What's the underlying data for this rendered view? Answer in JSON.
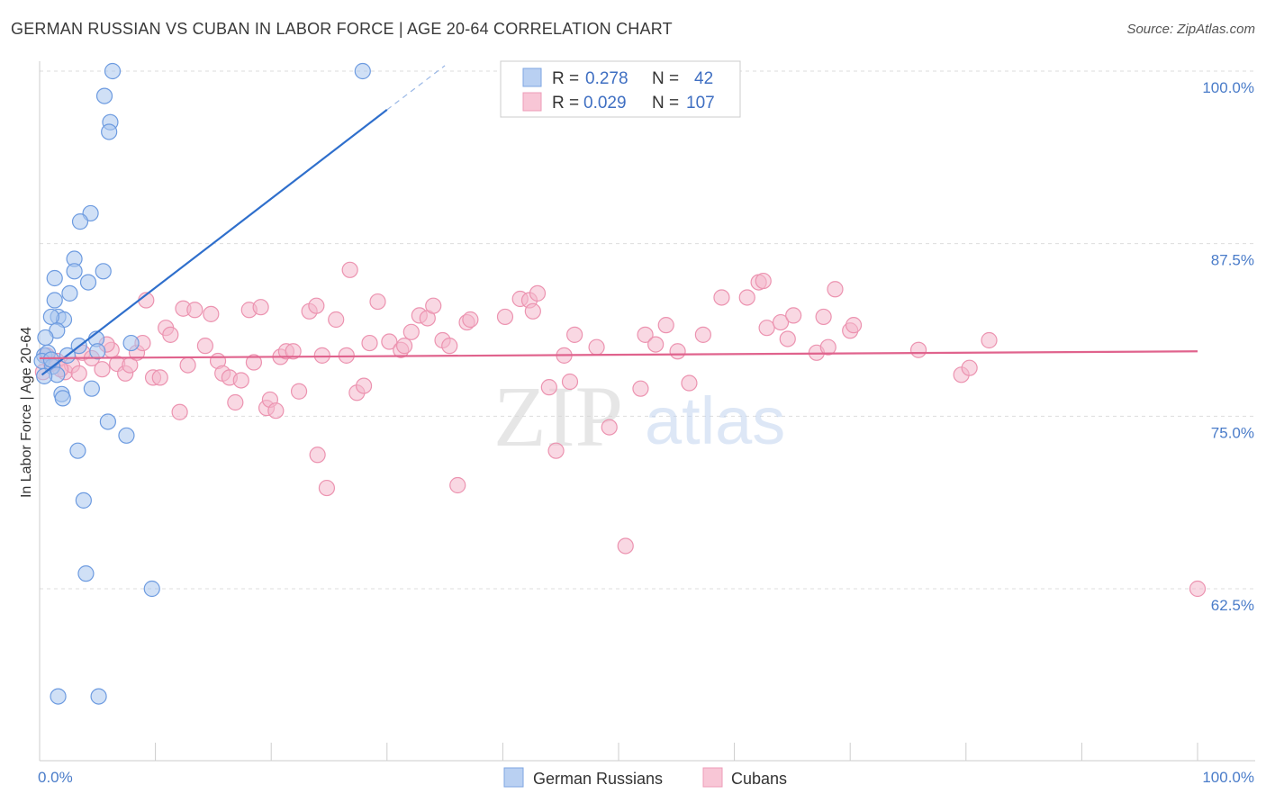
{
  "header": {
    "title": "GERMAN RUSSIAN VS CUBAN IN LABOR FORCE | AGE 20-64 CORRELATION CHART",
    "source": "Source: ZipAtlas.com"
  },
  "watermark": {
    "zip": "ZIP",
    "atlas": "atlas"
  },
  "legend": {
    "r_label": "R =",
    "n_label": "N =",
    "series": [
      {
        "r": "0.278",
        "n": "42"
      },
      {
        "r": "0.029",
        "n": "107"
      }
    ]
  },
  "colors": {
    "blue_fill": "#a9c6ef",
    "blue_stroke": "#6d9be0",
    "blue_line": "#2f6fcc",
    "pink_fill": "#f4b8cc",
    "pink_stroke": "#ec93b0",
    "pink_line": "#e0638d",
    "tick_text": "#4a7cc9"
  },
  "chart_data": {
    "type": "scatter",
    "title": "GERMAN RUSSIAN VS CUBAN IN LABOR FORCE | AGE 20-64 CORRELATION CHART",
    "xlabel": "",
    "ylabel": "In Labor Force | Age 20-64",
    "xlim": [
      0,
      100
    ],
    "ylim": [
      52,
      102
    ],
    "x_tick_labels": [
      "0.0%",
      "100.0%"
    ],
    "y_ticks": [
      62.5,
      75.0,
      87.5,
      100.0
    ],
    "y_tick_labels": [
      "62.5%",
      "75.0%",
      "87.5%",
      "100.0%"
    ],
    "legend_position": "top-center",
    "series": [
      {
        "name": "German Russians",
        "r": 0.278,
        "n": 42,
        "trend": {
          "x0": 0.2,
          "y0": 78.0,
          "x1": 30,
          "y1": 97.2,
          "dash_x1": 35,
          "dash_y1": 100.4
        },
        "points": [
          [
            6.3,
            100.0
          ],
          [
            27.9,
            100.0
          ],
          [
            5.6,
            98.2
          ],
          [
            6.1,
            96.3
          ],
          [
            6.0,
            95.6
          ],
          [
            4.4,
            89.7
          ],
          [
            3.5,
            89.1
          ],
          [
            3.0,
            86.4
          ],
          [
            5.5,
            85.5
          ],
          [
            1.3,
            85.0
          ],
          [
            3.0,
            85.5
          ],
          [
            4.2,
            84.7
          ],
          [
            2.6,
            83.9
          ],
          [
            1.3,
            83.4
          ],
          [
            1.6,
            82.2
          ],
          [
            2.1,
            82.0
          ],
          [
            1.0,
            82.2
          ],
          [
            1.5,
            81.2
          ],
          [
            0.5,
            80.7
          ],
          [
            7.9,
            80.3
          ],
          [
            3.4,
            80.1
          ],
          [
            4.9,
            80.6
          ],
          [
            0.4,
            79.4
          ],
          [
            2.4,
            79.4
          ],
          [
            5.0,
            79.7
          ],
          [
            0.7,
            79.6
          ],
          [
            0.2,
            79.0
          ],
          [
            1.1,
            78.6
          ],
          [
            1.5,
            78.0
          ],
          [
            0.4,
            77.9
          ],
          [
            4.5,
            77.0
          ],
          [
            1.9,
            76.6
          ],
          [
            2.0,
            76.3
          ],
          [
            5.9,
            74.6
          ],
          [
            7.5,
            73.6
          ],
          [
            3.3,
            72.5
          ],
          [
            3.8,
            68.9
          ],
          [
            4.0,
            63.6
          ],
          [
            9.7,
            62.5
          ],
          [
            1.6,
            54.7
          ],
          [
            5.1,
            54.7
          ],
          [
            1.0,
            79.1
          ]
        ]
      },
      {
        "name": "Cubans",
        "r": 0.029,
        "n": 107,
        "trend": {
          "x0": 0.0,
          "y0": 79.2,
          "x1": 100,
          "y1": 79.7
        },
        "points": [
          [
            0.3,
            78.2
          ],
          [
            1.0,
            78.8
          ],
          [
            1.5,
            79.0
          ],
          [
            2.2,
            78.2
          ],
          [
            2.8,
            78.7
          ],
          [
            3.4,
            78.1
          ],
          [
            3.7,
            79.6
          ],
          [
            4.5,
            79.2
          ],
          [
            5.4,
            78.4
          ],
          [
            6.2,
            79.8
          ],
          [
            6.7,
            78.8
          ],
          [
            7.4,
            78.1
          ],
          [
            7.8,
            78.7
          ],
          [
            8.4,
            79.6
          ],
          [
            8.9,
            80.3
          ],
          [
            9.2,
            83.4
          ],
          [
            9.8,
            77.8
          ],
          [
            10.4,
            77.8
          ],
          [
            10.9,
            81.4
          ],
          [
            11.3,
            80.9
          ],
          [
            12.1,
            75.3
          ],
          [
            12.4,
            82.8
          ],
          [
            12.8,
            78.7
          ],
          [
            13.4,
            82.7
          ],
          [
            14.3,
            80.1
          ],
          [
            14.8,
            82.4
          ],
          [
            15.4,
            79.0
          ],
          [
            15.8,
            78.1
          ],
          [
            16.4,
            77.8
          ],
          [
            16.9,
            76.0
          ],
          [
            17.4,
            77.6
          ],
          [
            18.1,
            82.7
          ],
          [
            18.5,
            78.9
          ],
          [
            19.1,
            82.9
          ],
          [
            19.6,
            75.6
          ],
          [
            19.9,
            76.2
          ],
          [
            20.4,
            75.4
          ],
          [
            20.8,
            79.3
          ],
          [
            21.3,
            79.7
          ],
          [
            21.9,
            79.7
          ],
          [
            22.4,
            76.8
          ],
          [
            23.3,
            82.6
          ],
          [
            23.9,
            83.0
          ],
          [
            24.4,
            79.4
          ],
          [
            24.0,
            72.2
          ],
          [
            24.8,
            69.8
          ],
          [
            25.6,
            82.0
          ],
          [
            26.8,
            85.6
          ],
          [
            27.4,
            76.7
          ],
          [
            28.0,
            77.2
          ],
          [
            28.5,
            80.3
          ],
          [
            29.2,
            83.3
          ],
          [
            30.2,
            80.4
          ],
          [
            31.2,
            79.8
          ],
          [
            31.5,
            80.1
          ],
          [
            32.1,
            81.1
          ],
          [
            32.8,
            82.3
          ],
          [
            33.5,
            82.1
          ],
          [
            34.0,
            83.0
          ],
          [
            34.8,
            80.5
          ],
          [
            35.4,
            80.1
          ],
          [
            36.1,
            70.0
          ],
          [
            36.9,
            81.8
          ],
          [
            37.2,
            82.0
          ],
          [
            40.2,
            82.2
          ],
          [
            41.5,
            83.5
          ],
          [
            42.3,
            83.4
          ],
          [
            42.6,
            82.6
          ],
          [
            43.0,
            83.9
          ],
          [
            44.0,
            77.1
          ],
          [
            44.6,
            72.5
          ],
          [
            45.3,
            79.4
          ],
          [
            45.8,
            77.5
          ],
          [
            46.2,
            80.9
          ],
          [
            48.1,
            80.0
          ],
          [
            49.2,
            74.2
          ],
          [
            50.6,
            65.6
          ],
          [
            51.9,
            77.0
          ],
          [
            52.3,
            80.9
          ],
          [
            53.2,
            80.2
          ],
          [
            54.1,
            81.6
          ],
          [
            55.1,
            79.7
          ],
          [
            56.1,
            77.4
          ],
          [
            57.3,
            80.9
          ],
          [
            58.9,
            83.6
          ],
          [
            61.1,
            83.6
          ],
          [
            62.1,
            84.7
          ],
          [
            62.5,
            84.8
          ],
          [
            62.8,
            81.4
          ],
          [
            64.0,
            81.8
          ],
          [
            64.6,
            80.6
          ],
          [
            65.1,
            82.3
          ],
          [
            67.1,
            79.6
          ],
          [
            67.7,
            82.2
          ],
          [
            68.1,
            80.0
          ],
          [
            68.7,
            84.2
          ],
          [
            70.0,
            81.2
          ],
          [
            70.3,
            81.6
          ],
          [
            75.9,
            79.8
          ],
          [
            79.6,
            78.0
          ],
          [
            80.3,
            78.5
          ],
          [
            82.0,
            80.5
          ],
          [
            100.0,
            62.5
          ],
          [
            0.6,
            79.4
          ],
          [
            1.8,
            78.4
          ],
          [
            5.8,
            80.2
          ],
          [
            26.5,
            79.4
          ]
        ]
      }
    ]
  },
  "bottom_legend": [
    {
      "label": "German Russians"
    },
    {
      "label": "Cubans"
    }
  ]
}
